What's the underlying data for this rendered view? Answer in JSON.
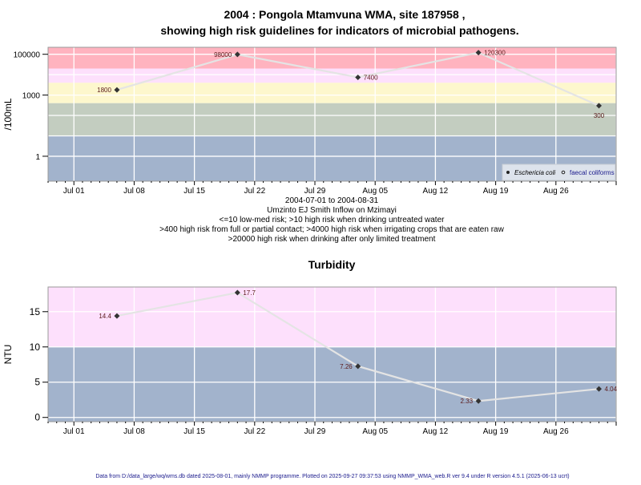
{
  "title_line1": "2004 : Pongola Mtamvuna WMA, site 187958 ,",
  "title_line2": "showing high risk guidelines for indicators of microbial pathogens.",
  "footer": "Data from D:/data_large/wq/wms.db dated 2025-08-01, mainly NMMP programme. Plotted on 2025-09-27 09:37:53 using NMMP_WMA_web.R ver 9.4 under R version 4.5.1 (2025-06-13 ucrt)",
  "colors": {
    "red": "#ffb3bf",
    "pink": "#fde0fc",
    "yellow": "#fdf7cd",
    "sage": "#c3cdc0",
    "blue": "#a2b3cc",
    "line": "#e4e4e4",
    "point": "#333333"
  },
  "chart_data": [
    {
      "type": "line",
      "title": "",
      "ylabel": "/100mL",
      "yscale": "log",
      "ylim": [
        0.06,
        220000
      ],
      "xlim": [
        "2004-06-28",
        "2004-09-02"
      ],
      "x_ticks": [
        "Jul 01",
        "Jul 08",
        "Jul 15",
        "Jul 22",
        "Jul 29",
        "Aug 05",
        "Aug 12",
        "Aug 19",
        "Aug 26"
      ],
      "y_ticks": [
        "1",
        "1000",
        "100000"
      ],
      "subtitle_lines": [
        "2004-07-01 to 2004-08-31",
        "Umzinto EJ Smith Inflow on Mzimayi",
        "<=10 low-med risk; >10 high risk when drinking untreated water",
        ">400 high risk from full or partial contact; >4000 high risk when irrigating crops that are eaten raw",
        ">20000 high risk when drinking after only limited treatment"
      ],
      "bands": [
        {
          "from": 20000,
          "to": 220000,
          "color": "red"
        },
        {
          "from": 4000,
          "to": 20000,
          "color": "pink"
        },
        {
          "from": 400,
          "to": 4000,
          "color": "yellow"
        },
        {
          "from": 10,
          "to": 400,
          "color": "sage"
        },
        {
          "from": 0.06,
          "to": 10,
          "color": "blue"
        }
      ],
      "legend": {
        "position": "bottom-right",
        "entries": [
          "Eschericia coli",
          "faecal coliforms"
        ]
      },
      "series": [
        {
          "name": "Eschericia coli",
          "x": [
            "2004-07-06",
            "2004-07-20",
            "2004-08-03",
            "2004-08-17",
            "2004-08-31"
          ],
          "values": [
            1800,
            98000,
            7400,
            120300,
            300
          ],
          "labels": [
            "1800",
            "98000",
            "7400",
            "120300",
            "300"
          ],
          "label_pos": [
            "left",
            "left",
            "right",
            "right",
            "below"
          ]
        }
      ]
    },
    {
      "type": "line",
      "title": "Turbidity",
      "ylabel": "NTU",
      "yscale": "linear",
      "ylim": [
        -0.6,
        18.5
      ],
      "xlim": [
        "2004-06-28",
        "2004-09-02"
      ],
      "x_ticks": [
        "Jul 01",
        "Jul 08",
        "Jul 15",
        "Jul 22",
        "Jul 29",
        "Aug 05",
        "Aug 12",
        "Aug 19",
        "Aug 26"
      ],
      "y_ticks": [
        "0",
        "5",
        "10",
        "15"
      ],
      "bands": [
        {
          "from": 10,
          "to": 18.5,
          "color": "pink"
        },
        {
          "from": -0.6,
          "to": 10,
          "color": "blue"
        }
      ],
      "series": [
        {
          "name": "Turbidity",
          "x": [
            "2004-07-06",
            "2004-07-20",
            "2004-08-03",
            "2004-08-17",
            "2004-08-31"
          ],
          "values": [
            14.4,
            17.7,
            7.26,
            2.33,
            4.04
          ],
          "labels": [
            "14.4",
            "17.7",
            "7.26",
            "2.33",
            "4.04"
          ],
          "label_pos": [
            "left",
            "right",
            "left",
            "left",
            "right"
          ]
        }
      ]
    }
  ]
}
